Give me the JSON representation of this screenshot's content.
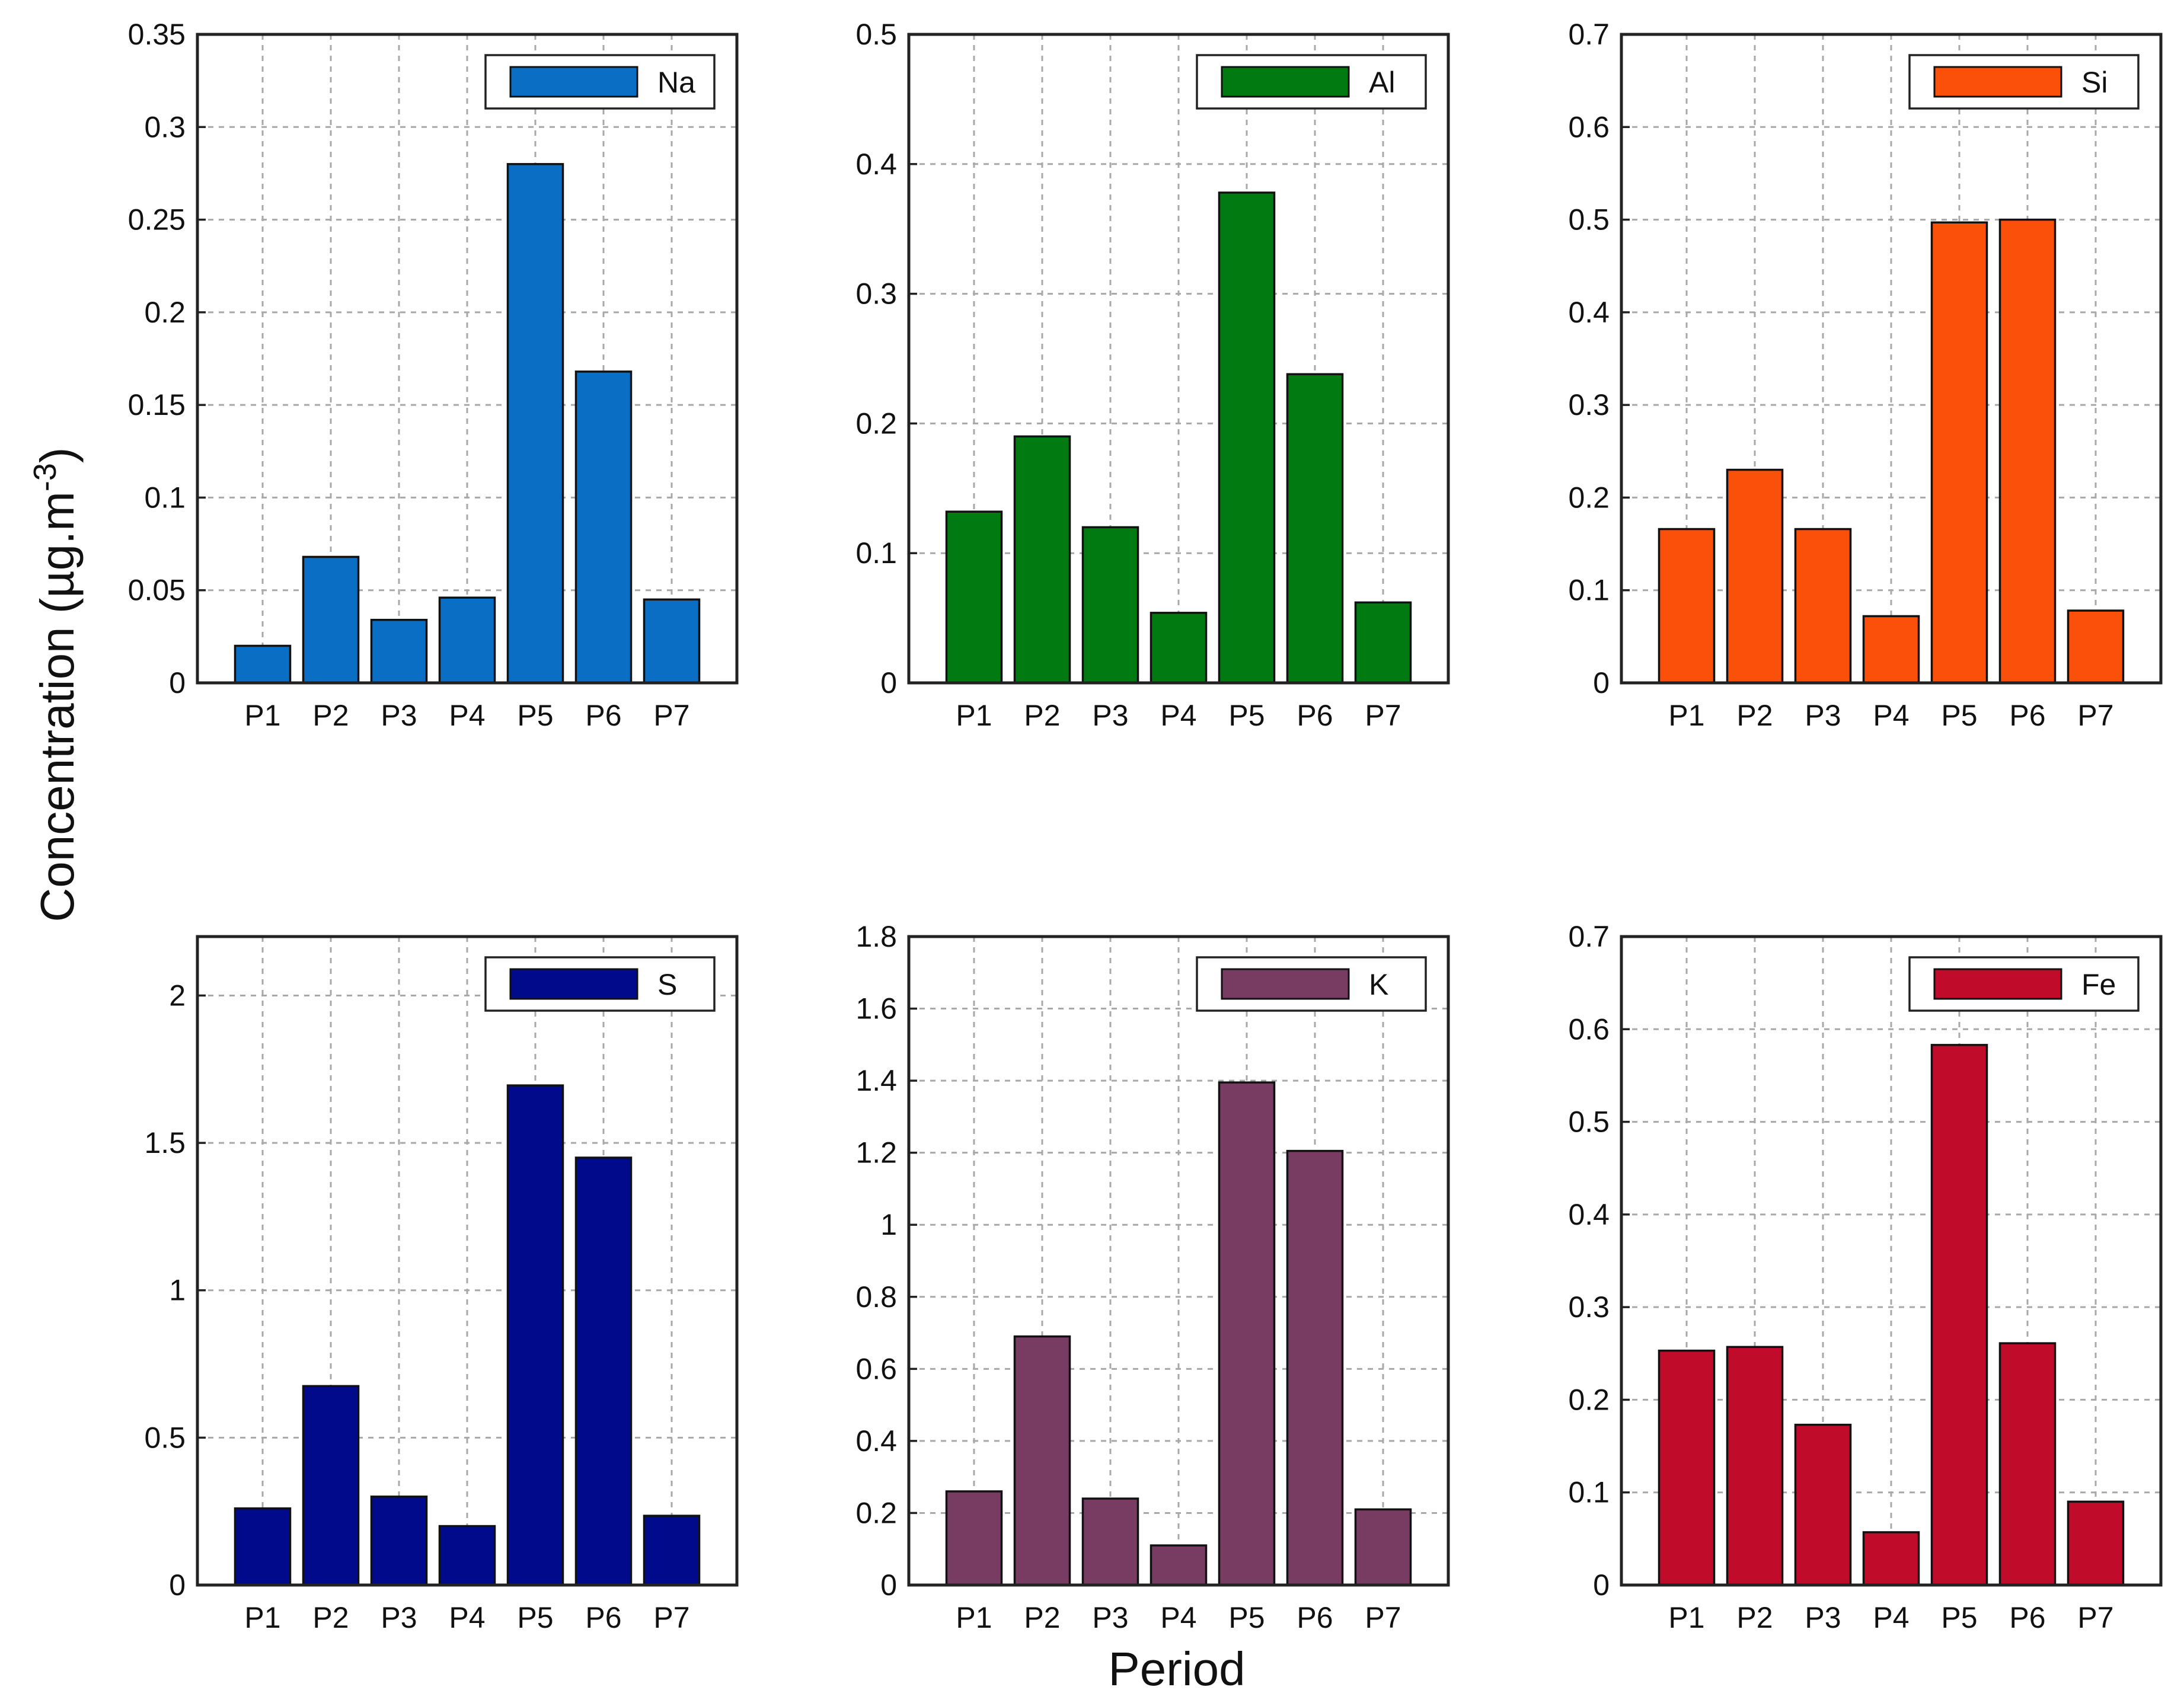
{
  "figure": {
    "ylabel": "Concentration (µg.m",
    "ylabel_sup": "-3",
    "ylabel_close": ")",
    "xlabel": "Period"
  },
  "chart_data": [
    {
      "type": "bar",
      "legend": "Na",
      "color": "#0a6fc4",
      "categories": [
        "P1",
        "P2",
        "P3",
        "P4",
        "P5",
        "P6",
        "P7"
      ],
      "values": [
        0.02,
        0.068,
        0.034,
        0.046,
        0.28,
        0.168,
        0.045
      ],
      "ylim": [
        0,
        0.35
      ],
      "yticks": [
        0,
        0.05,
        0.1,
        0.15,
        0.2,
        0.25,
        0.3,
        0.35
      ],
      "ytick_labels": [
        "0",
        "0.05",
        "0.1",
        "0.15",
        "0.2",
        "0.25",
        "0.3",
        "0.35"
      ],
      "legend_position": "top-right",
      "grid": true
    },
    {
      "type": "bar",
      "legend": "Al",
      "color": "#017a12",
      "categories": [
        "P1",
        "P2",
        "P3",
        "P4",
        "P5",
        "P6",
        "P7"
      ],
      "values": [
        0.132,
        0.19,
        0.12,
        0.054,
        0.378,
        0.238,
        0.062
      ],
      "ylim": [
        0,
        0.5
      ],
      "yticks": [
        0,
        0.1,
        0.2,
        0.3,
        0.4,
        0.5
      ],
      "ytick_labels": [
        "0",
        "0.1",
        "0.2",
        "0.3",
        "0.4",
        "0.5"
      ],
      "legend_position": "top-right",
      "grid": true
    },
    {
      "type": "bar",
      "legend": "Si",
      "color": "#fa500a",
      "categories": [
        "P1",
        "P2",
        "P3",
        "P4",
        "P5",
        "P6",
        "P7"
      ],
      "values": [
        0.166,
        0.23,
        0.166,
        0.072,
        0.497,
        0.5,
        0.078
      ],
      "ylim": [
        0,
        0.7
      ],
      "yticks": [
        0,
        0.1,
        0.2,
        0.3,
        0.4,
        0.5,
        0.6,
        0.7
      ],
      "ytick_labels": [
        "0",
        "0.1",
        "0.2",
        "0.3",
        "0.4",
        "0.5",
        "0.6",
        "0.7"
      ],
      "legend_position": "top-right",
      "grid": true
    },
    {
      "type": "bar",
      "legend": "S",
      "color": "#000a8a",
      "categories": [
        "P1",
        "P2",
        "P3",
        "P4",
        "P5",
        "P6",
        "P7"
      ],
      "values": [
        0.26,
        0.675,
        0.3,
        0.2,
        1.695,
        1.45,
        0.235
      ],
      "ylim": [
        0,
        2.2
      ],
      "yticks": [
        0,
        0.5,
        1,
        1.5,
        2
      ],
      "ytick_labels": [
        "0",
        "0.5",
        "1",
        "1.5",
        "2"
      ],
      "legend_position": "top-right",
      "grid": true
    },
    {
      "type": "bar",
      "legend": "K",
      "color": "#783c63",
      "categories": [
        "P1",
        "P2",
        "P3",
        "P4",
        "P5",
        "P6",
        "P7"
      ],
      "values": [
        0.26,
        0.69,
        0.24,
        0.11,
        1.395,
        1.205,
        0.21
      ],
      "ylim": [
        0,
        1.8
      ],
      "yticks": [
        0,
        0.2,
        0.4,
        0.6,
        0.8,
        1,
        1.2,
        1.4,
        1.6,
        1.8
      ],
      "ytick_labels": [
        "0",
        "0.2",
        "0.4",
        "0.6",
        "0.8",
        "1",
        "1.2",
        "1.4",
        "1.6",
        "1.8"
      ],
      "legend_position": "top-right",
      "grid": true
    },
    {
      "type": "bar",
      "legend": "Fe",
      "color": "#c00c2a",
      "categories": [
        "P1",
        "P2",
        "P3",
        "P4",
        "P5",
        "P6",
        "P7"
      ],
      "values": [
        0.253,
        0.257,
        0.173,
        0.057,
        0.583,
        0.261,
        0.09
      ],
      "ylim": [
        0,
        0.7
      ],
      "yticks": [
        0,
        0.1,
        0.2,
        0.3,
        0.4,
        0.5,
        0.6,
        0.7
      ],
      "ytick_labels": [
        "0",
        "0.1",
        "0.2",
        "0.3",
        "0.4",
        "0.5",
        "0.6",
        "0.7"
      ],
      "legend_position": "top-right",
      "grid": true
    }
  ]
}
